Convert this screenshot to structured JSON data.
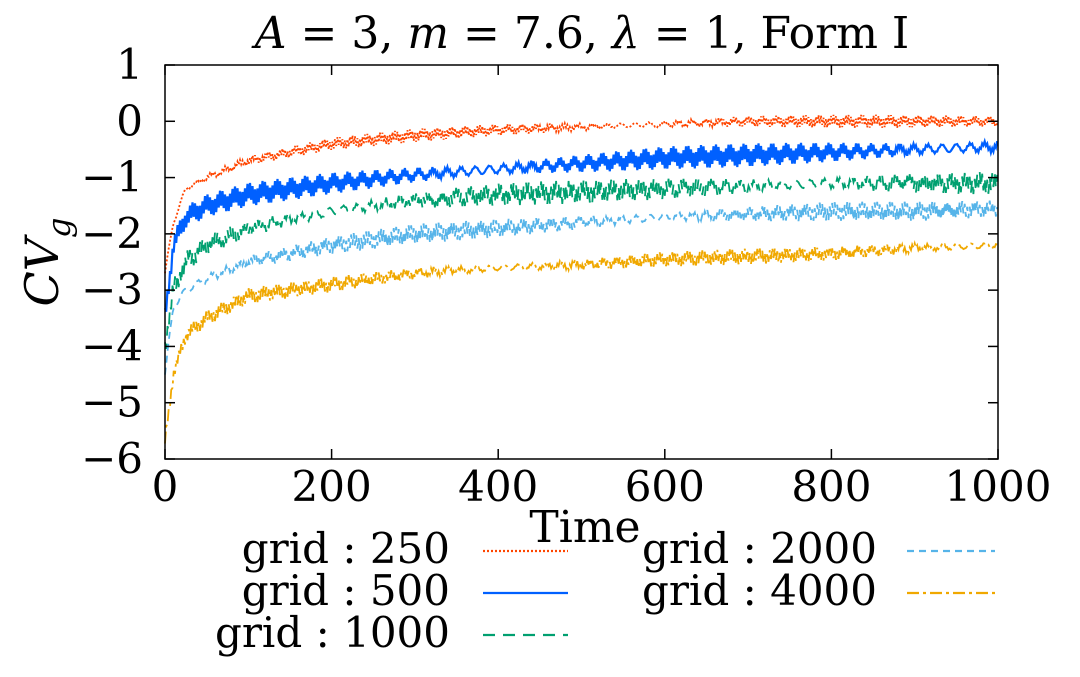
{
  "chart_data": {
    "type": "line",
    "title": "A = 3, m = 7.6, λ = 1, Form I",
    "title_parts": {
      "a": "A",
      "a_val": " = 3, ",
      "m": "m",
      "m_val": " = 7.6, ",
      "lambda": "λ",
      "lambda_val": " = 1, Form I"
    },
    "xlabel": "Time",
    "ylabel": {
      "main": "CV",
      "sub": "g"
    },
    "xlim": [
      0,
      1000
    ],
    "ylim": [
      -6,
      1
    ],
    "xticks": [
      0,
      200,
      400,
      600,
      800,
      1000
    ],
    "yticks": [
      1,
      0,
      -1,
      -2,
      -3,
      -4,
      -5,
      -6
    ],
    "ytick_labels": [
      "1",
      "0",
      "−1",
      "−2",
      "−3",
      "−4",
      "−5",
      "−6"
    ],
    "grid": false,
    "legend_placement": "bottom",
    "x": [
      0,
      10,
      25,
      50,
      100,
      200,
      300,
      400,
      500,
      600,
      700,
      800,
      900,
      1000
    ],
    "series": [
      {
        "name": "grid : 250",
        "color": "#ff4500",
        "style": "dotted",
        "values": [
          -2.7,
          -1.8,
          -1.2,
          -1.0,
          -0.7,
          -0.4,
          -0.25,
          -0.15,
          -0.1,
          -0.05,
          0,
          0,
          0,
          0
        ]
      },
      {
        "name": "grid : 500",
        "color": "#0060ff",
        "style": "solid",
        "values": [
          -3.5,
          -2.2,
          -1.7,
          -1.5,
          -1.3,
          -1.1,
          -0.95,
          -0.85,
          -0.75,
          -0.65,
          -0.6,
          -0.55,
          -0.5,
          -0.45
        ]
      },
      {
        "name": "grid : 1000",
        "color": "#00a070",
        "style": "dashed",
        "values": [
          -4.0,
          -3.0,
          -2.5,
          -2.2,
          -1.9,
          -1.6,
          -1.4,
          -1.3,
          -1.25,
          -1.2,
          -1.15,
          -1.1,
          -1.1,
          -1.1
        ]
      },
      {
        "name": "grid : 2000",
        "color": "#56b4e9",
        "style": "short-dashed",
        "values": [
          -4.5,
          -3.3,
          -3.0,
          -2.8,
          -2.5,
          -2.2,
          -2.0,
          -1.9,
          -1.8,
          -1.7,
          -1.65,
          -1.6,
          -1.6,
          -1.55
        ]
      },
      {
        "name": "grid : 4000",
        "color": "#f0a800",
        "style": "dash-dot",
        "values": [
          -5.7,
          -4.5,
          -3.8,
          -3.5,
          -3.1,
          -2.9,
          -2.7,
          -2.6,
          -2.55,
          -2.45,
          -2.4,
          -2.35,
          -2.25,
          -2.2
        ]
      }
    ]
  }
}
